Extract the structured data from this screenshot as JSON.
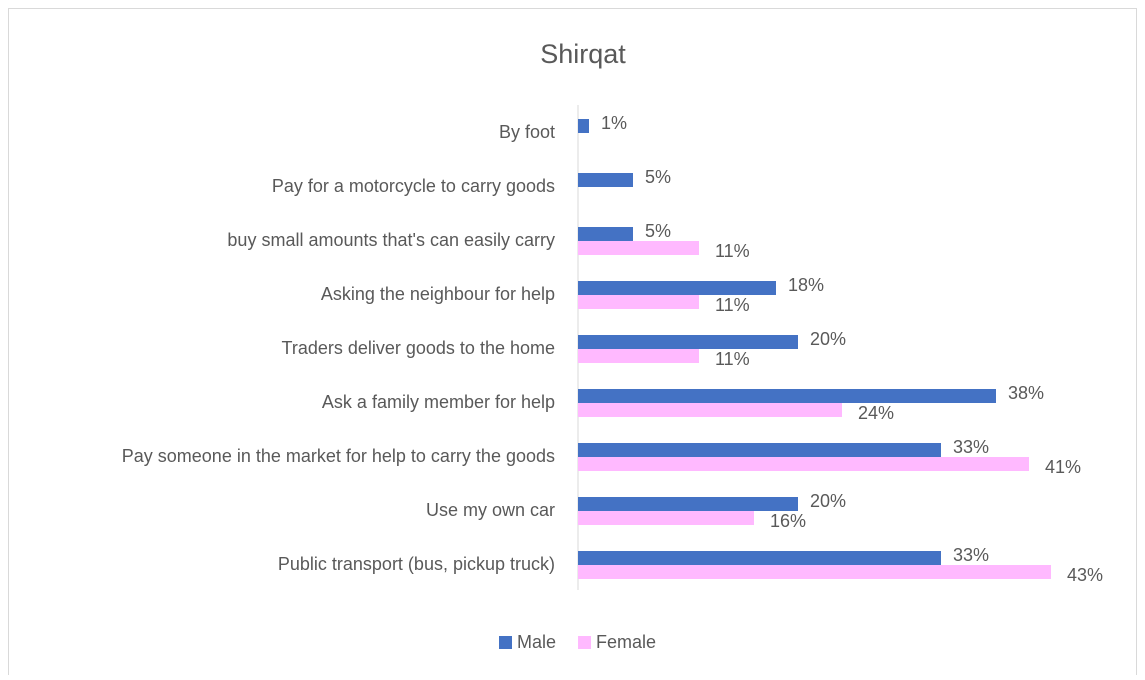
{
  "chart_data": {
    "type": "bar",
    "orientation": "horizontal",
    "title": "Shirqat",
    "categories": [
      "By foot",
      "Pay for a motorcycle to carry goods",
      "buy small amounts that's can easily carry",
      "Asking the neighbour for help",
      "Traders deliver goods to the home",
      "Ask a family member for help",
      "Pay someone in the market for help to carry the goods",
      "Use my own car",
      "Public transport (bus, pickup truck)"
    ],
    "series": [
      {
        "name": "Male",
        "color": "#4472c4",
        "values": [
          1,
          5,
          5,
          18,
          20,
          38,
          33,
          20,
          33
        ],
        "value_labels": [
          "1%",
          "5%",
          "5%",
          "18%",
          "20%",
          "38%",
          "33%",
          "20%",
          "33%"
        ]
      },
      {
        "name": "Female",
        "color": "#ffb9ff",
        "values": [
          null,
          null,
          11,
          11,
          11,
          24,
          41,
          16,
          43
        ],
        "value_labels": [
          null,
          null,
          "11%",
          "11%",
          "11%",
          "24%",
          "41%",
          "16%",
          "43%"
        ]
      }
    ],
    "xlim": [
      0,
      50
    ],
    "legend": "bottom"
  }
}
